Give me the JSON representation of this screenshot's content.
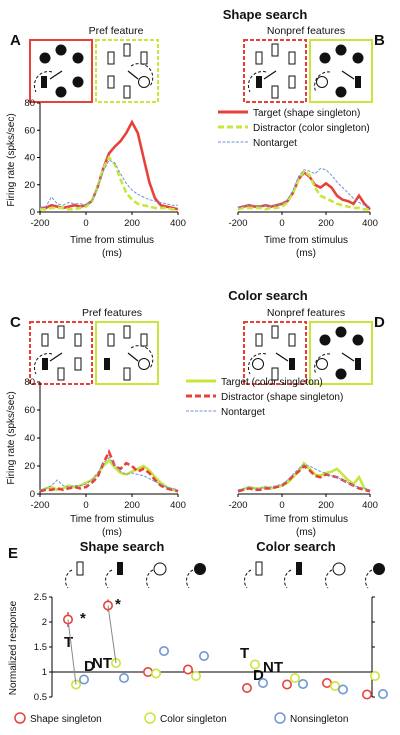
{
  "colors": {
    "red": "#e8413a",
    "green": "#c8e63c",
    "blue": "#6f96d6",
    "black": "#111111"
  },
  "shape_search": {
    "title": "Shape search",
    "panel_A": "A",
    "panel_B": "B",
    "pref_label": "Pref feature",
    "nonpref_label": "Nonpref features"
  },
  "color_search": {
    "title": "Color search",
    "panel_C": "C",
    "panel_D": "D",
    "pref_label": "Pref features",
    "nonpref_label": "Nonpref features"
  },
  "panel_E": {
    "label": "E",
    "left_title": "Shape search",
    "right_title": "Color search",
    "letters": {
      "T": "T",
      "D": "D",
      "NT": "NT"
    },
    "star": "*",
    "legend": [
      "Shape singleton",
      "Color singleton",
      "Nonsingleton"
    ]
  },
  "chart_data": [
    {
      "type": "line",
      "id": "A",
      "xlabel": "Time from stimulus (ms)",
      "ylabel": "Firing rate (spks/sec)",
      "xlim": [
        -200,
        400
      ],
      "ylim": [
        0,
        80
      ],
      "xticks": [
        "-200",
        "0",
        "200",
        "400"
      ],
      "yticks": [
        "0",
        "20",
        "40",
        "60",
        "80"
      ],
      "legend": [
        "Target (shape singleton)",
        "Distractor (color singleton)",
        "Nontarget"
      ],
      "x": [
        -200,
        -175,
        -150,
        -125,
        -100,
        -75,
        -50,
        -25,
        0,
        25,
        50,
        75,
        100,
        125,
        150,
        175,
        200,
        225,
        250,
        275,
        300,
        325,
        350,
        375,
        400
      ],
      "series": [
        {
          "name": "Target (shape singleton)",
          "color": "red",
          "style": "solid",
          "values": [
            3,
            3,
            5,
            4,
            3,
            4,
            5,
            4,
            5,
            8,
            18,
            32,
            43,
            48,
            52,
            58,
            66,
            58,
            40,
            22,
            10,
            5,
            4,
            3,
            2
          ]
        },
        {
          "name": "Distractor (color singleton)",
          "color": "green",
          "style": "dashed",
          "values": [
            2,
            2,
            3,
            3,
            3,
            2,
            2,
            3,
            4,
            8,
            18,
            32,
            40,
            35,
            24,
            14,
            9,
            6,
            5,
            4,
            3,
            3,
            3,
            2,
            2
          ]
        },
        {
          "name": "Nontarget",
          "color": "blue",
          "style": "thin",
          "values": [
            3,
            4,
            11,
            6,
            5,
            7,
            6,
            6,
            5,
            8,
            18,
            30,
            38,
            36,
            28,
            21,
            16,
            13,
            11,
            9,
            8,
            7,
            6,
            5,
            5
          ]
        }
      ]
    },
    {
      "type": "line",
      "id": "B",
      "xlabel": "",
      "ylabel": "",
      "xlim": [
        -200,
        400
      ],
      "ylim": [
        0,
        80
      ],
      "xticks": [
        "-200",
        "0",
        "200",
        "400"
      ],
      "yticks": [],
      "x": [
        -200,
        -175,
        -150,
        -125,
        -100,
        -75,
        -50,
        -25,
        0,
        25,
        50,
        75,
        100,
        125,
        150,
        175,
        200,
        225,
        250,
        275,
        300,
        325,
        350,
        375,
        400
      ],
      "series": [
        {
          "name": "Target (shape singleton)",
          "color": "red",
          "style": "solid",
          "values": [
            3,
            4,
            5,
            4,
            4,
            5,
            4,
            5,
            6,
            8,
            14,
            24,
            29,
            26,
            20,
            18,
            21,
            18,
            12,
            9,
            8,
            6,
            12,
            6,
            2
          ]
        },
        {
          "name": "Distractor (color singleton)",
          "color": "green",
          "style": "dashed",
          "values": [
            2,
            3,
            3,
            3,
            3,
            2,
            3,
            3,
            4,
            7,
            14,
            24,
            30,
            27,
            18,
            12,
            10,
            8,
            6,
            5,
            4,
            3,
            3,
            2,
            2
          ]
        },
        {
          "name": "Nontarget",
          "color": "blue",
          "style": "thin",
          "values": [
            3,
            4,
            5,
            5,
            4,
            5,
            4,
            5,
            6,
            9,
            16,
            26,
            31,
            30,
            28,
            32,
            31,
            27,
            22,
            18,
            14,
            10,
            7,
            5,
            4
          ]
        }
      ]
    },
    {
      "type": "line",
      "id": "C",
      "xlabel": "Time from stimulus (ms)",
      "ylabel": "Firing rate (spks/sec)",
      "xlim": [
        -200,
        400
      ],
      "ylim": [
        0,
        80
      ],
      "xticks": [
        "-200",
        "0",
        "200",
        "400"
      ],
      "yticks": [
        "0",
        "20",
        "40",
        "60",
        "80"
      ],
      "legend": [
        "Target (color singleton)",
        "Distractor (shape singleton)",
        "Nontarget"
      ],
      "x": [
        -200,
        -175,
        -150,
        -125,
        -100,
        -75,
        -50,
        -25,
        0,
        25,
        50,
        75,
        100,
        125,
        150,
        175,
        200,
        225,
        250,
        275,
        300,
        325,
        350,
        375,
        400
      ],
      "series": [
        {
          "name": "Target (color singleton)",
          "color": "green",
          "style": "solid",
          "values": [
            2,
            4,
            5,
            3,
            4,
            6,
            5,
            6,
            8,
            10,
            14,
            20,
            24,
            19,
            15,
            14,
            16,
            18,
            20,
            17,
            12,
            8,
            5,
            3,
            2
          ]
        },
        {
          "name": "Distractor (shape singleton)",
          "color": "red",
          "style": "dashed",
          "values": [
            2,
            3,
            3,
            4,
            3,
            4,
            5,
            4,
            5,
            8,
            12,
            22,
            30,
            20,
            18,
            22,
            20,
            16,
            18,
            15,
            10,
            6,
            4,
            3,
            2
          ]
        },
        {
          "name": "Nontarget",
          "color": "blue",
          "style": "thin",
          "values": [
            3,
            4,
            6,
            10,
            6,
            5,
            6,
            6,
            7,
            10,
            15,
            22,
            26,
            21,
            16,
            14,
            15,
            14,
            13,
            11,
            9,
            7,
            5,
            4,
            3
          ]
        }
      ]
    },
    {
      "type": "line",
      "id": "D",
      "xlabel": "",
      "ylabel": "",
      "xlim": [
        -200,
        400
      ],
      "ylim": [
        0,
        80
      ],
      "xticks": [
        "-200",
        "0",
        "200",
        "400"
      ],
      "yticks": [],
      "x": [
        -200,
        -175,
        -150,
        -125,
        -100,
        -75,
        -50,
        -25,
        0,
        25,
        50,
        75,
        100,
        125,
        150,
        175,
        200,
        225,
        250,
        275,
        300,
        325,
        350,
        375,
        400
      ],
      "series": [
        {
          "name": "Target (color singleton)",
          "color": "green",
          "style": "solid",
          "values": [
            2,
            3,
            5,
            4,
            4,
            5,
            4,
            5,
            6,
            8,
            12,
            16,
            22,
            18,
            14,
            13,
            15,
            16,
            18,
            14,
            10,
            7,
            12,
            4,
            2
          ]
        },
        {
          "name": "Distractor (shape singleton)",
          "color": "red",
          "style": "dashed",
          "values": [
            2,
            3,
            4,
            3,
            3,
            4,
            4,
            5,
            6,
            9,
            13,
            16,
            20,
            17,
            13,
            12,
            14,
            13,
            12,
            10,
            8,
            6,
            4,
            3,
            2
          ]
        },
        {
          "name": "Nontarget",
          "color": "blue",
          "style": "thin",
          "values": [
            3,
            4,
            5,
            4,
            4,
            5,
            5,
            6,
            7,
            10,
            14,
            18,
            21,
            20,
            18,
            16,
            15,
            13,
            12,
            10,
            8,
            6,
            5,
            4,
            3
          ]
        }
      ]
    },
    {
      "type": "scatter",
      "id": "E",
      "ylabel": "Normalized response",
      "ylim": [
        0.5,
        2.5
      ],
      "yticks": [
        "0.5",
        "1",
        "1.5",
        "2",
        "2.5"
      ],
      "reference_line": 1,
      "groups": [
        "Shape search",
        "Color search"
      ],
      "conditions": [
        "nonpref shape",
        "pref shape",
        "nonpref color",
        "pref color"
      ],
      "series": [
        {
          "name": "Shape singleton",
          "color": "red",
          "shape_search": [
            [
              2.05,
              0.15
            ],
            [
              2.33,
              0.12
            ],
            [
              1.0,
              0.08
            ],
            [
              1.05,
              0.07
            ]
          ],
          "color_search": [
            [
              0.68,
              0.06
            ],
            [
              0.75,
              0.07
            ],
            [
              0.78,
              0.08
            ],
            [
              0.55,
              0.05
            ]
          ]
        },
        {
          "name": "Color singleton",
          "color": "green",
          "shape_search": [
            [
              0.75,
              0.06
            ],
            [
              1.18,
              0.08
            ],
            [
              0.97,
              0.07
            ],
            [
              0.92,
              0.07
            ]
          ],
          "color_search": [
            [
              1.15,
              0.09
            ],
            [
              0.88,
              0.07
            ],
            [
              0.72,
              0.06
            ],
            [
              0.92,
              0.07
            ]
          ]
        },
        {
          "name": "Nonsingleton",
          "color": "blue",
          "shape_search": [
            [
              0.85,
              0.05
            ],
            [
              0.88,
              0.06
            ],
            [
              1.42,
              0.08
            ],
            [
              1.32,
              0.09
            ]
          ],
          "color_search": [
            [
              0.78,
              0.06
            ],
            [
              0.76,
              0.06
            ],
            [
              0.65,
              0.07
            ],
            [
              0.56,
              0.05
            ]
          ]
        }
      ]
    }
  ]
}
